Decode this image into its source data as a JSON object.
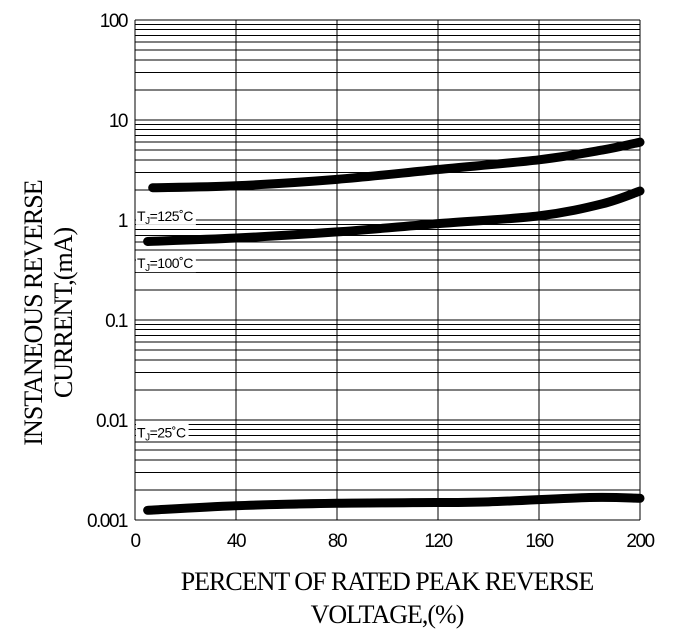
{
  "chart_data": {
    "type": "line",
    "title": "",
    "xlabel_lines": [
      "PERCENT OF RATED PEAK REVERSE",
      "VOLTAGE,(%)"
    ],
    "ylabel_lines": [
      "INSTANEOUS REVERSE",
      "CURRENT,(mA)"
    ],
    "xlim": [
      0,
      200
    ],
    "ylim": [
      0.001,
      100
    ],
    "yscale": "log",
    "grid": true,
    "xticks": [
      0,
      40,
      80,
      120,
      160,
      200
    ],
    "xtick_labels": [
      "0",
      "40",
      "80",
      "120",
      "160",
      "200"
    ],
    "yticks": [
      0.001,
      0.01,
      0.1,
      1,
      10,
      100
    ],
    "ytick_labels": [
      "0.001",
      "0.01",
      "0.1",
      "1",
      "10",
      "100"
    ],
    "series": [
      {
        "name": "TJ=125°C",
        "label_main": "T",
        "label_sub": "J",
        "label_rest": "=125˚C",
        "label_at": [
          0,
          1.1
        ],
        "x": [
          7,
          40,
          80,
          120,
          160,
          185,
          200
        ],
        "y": [
          2.1,
          2.2,
          2.55,
          3.2,
          4.0,
          5.0,
          6.0
        ]
      },
      {
        "name": "TJ=100°C",
        "label_main": "T",
        "label_sub": "J",
        "label_rest": "=100˚C",
        "label_at": [
          0,
          0.37
        ],
        "x": [
          5,
          40,
          80,
          120,
          160,
          185,
          200
        ],
        "y": [
          0.61,
          0.66,
          0.76,
          0.92,
          1.1,
          1.45,
          1.95
        ]
      },
      {
        "name": "TJ=25°C",
        "label_main": "T",
        "label_sub": "J",
        "label_rest": "=25˚C",
        "label_at": [
          0,
          0.0075
        ],
        "x": [
          5,
          40,
          80,
          110,
          140,
          180,
          200
        ],
        "y": [
          0.00125,
          0.00139,
          0.00147,
          0.00149,
          0.00152,
          0.00168,
          0.00165
        ]
      }
    ]
  }
}
